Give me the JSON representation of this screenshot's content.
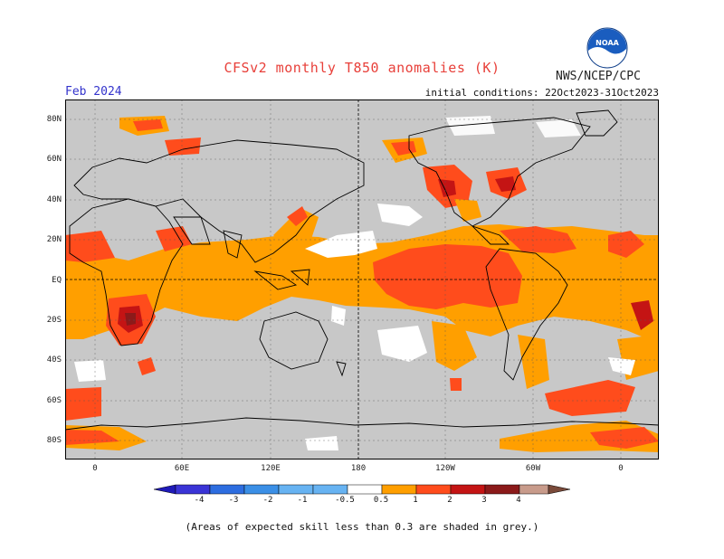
{
  "header": {
    "title": "CFSv2 monthly T850 anomalies (K)",
    "agency": "NWS/NCEP/CPC",
    "logo_text": "NOAA",
    "period": "Feb 2024",
    "initial_conditions": "initial conditions: 22Oct2023-31Oct2023"
  },
  "map": {
    "lat_labels": [
      "80N",
      "60N",
      "40N",
      "20N",
      "EQ",
      "20S",
      "40S",
      "60S",
      "80S"
    ],
    "lon_labels": [
      "0",
      "60E",
      "120E",
      "180",
      "120W",
      "60W",
      "0"
    ],
    "background_color": "#c8c8c8",
    "anomaly_colors": {
      "neutral": "#ffffff",
      "warm_0_5_1": "#ff9f00",
      "warm_1_2": "#ff4c1c",
      "warm_2_3": "#c41414",
      "warm_3_4": "#8b1a1a"
    }
  },
  "colorbar": {
    "labels": [
      "-4",
      "-3",
      "-2",
      "-1",
      "-0.5",
      "0.5",
      "1",
      "2",
      "3",
      "4"
    ],
    "colors": [
      "#1f1ab8",
      "#3a34d6",
      "#2d6de0",
      "#3b8fe6",
      "#67b3f2",
      "#ffffff",
      "#ff9f00",
      "#ff4c1c",
      "#c41414",
      "#8b1a1a",
      "#c89b8b",
      "#7a4a3a"
    ]
  },
  "footer": {
    "note": "(Areas of expected skill less than 0.3 are shaded in grey.)"
  }
}
